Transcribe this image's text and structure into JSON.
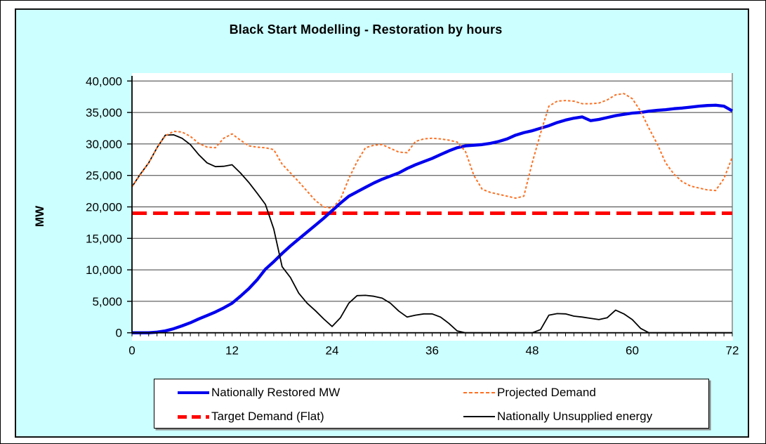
{
  "page": {
    "background": "#FFFFFF",
    "panel_background": "#CCFFFF",
    "border_color": "#000000",
    "plot_background": "#FFFFFF",
    "gridline_color": "#3D3D3D",
    "axis_color": "#000000"
  },
  "chart_data": {
    "type": "line",
    "title": "Black Start Modelling - Restoration by hours",
    "xlabel": "",
    "ylabel": "MW",
    "xlim": [
      0,
      72
    ],
    "ylim": [
      0,
      40000
    ],
    "x_ticks": [
      0,
      12,
      24,
      36,
      48,
      60,
      72
    ],
    "x_tick_labels": [
      "0",
      "12",
      "24",
      "36",
      "48",
      "60",
      "72"
    ],
    "x_minor_tick_step": 1,
    "y_ticks": [
      0,
      5000,
      10000,
      15000,
      20000,
      25000,
      30000,
      35000,
      40000
    ],
    "y_tick_labels": [
      "0",
      "5,000",
      "10,000",
      "15,000",
      "20,000",
      "25,000",
      "30,000",
      "35,000",
      "40,000"
    ],
    "grid": true,
    "legend_position": "bottom",
    "series": [
      {
        "name": "Nationally Restored MW",
        "color": "#0000EE",
        "width": 4.3,
        "dash": "solid",
        "points": [
          [
            0,
            0
          ],
          [
            2,
            0
          ],
          [
            3,
            100
          ],
          [
            4,
            300
          ],
          [
            5,
            650
          ],
          [
            6,
            1100
          ],
          [
            7,
            1600
          ],
          [
            8,
            2200
          ],
          [
            9,
            2750
          ],
          [
            10,
            3300
          ],
          [
            11,
            3950
          ],
          [
            12,
            4700
          ],
          [
            13,
            5800
          ],
          [
            14,
            7000
          ],
          [
            15,
            8400
          ],
          [
            16,
            10100
          ],
          [
            17,
            11300
          ],
          [
            18,
            12600
          ],
          [
            19,
            13800
          ],
          [
            20,
            14900
          ],
          [
            21,
            16000
          ],
          [
            22,
            17100
          ],
          [
            23,
            18200
          ],
          [
            24,
            19400
          ],
          [
            25,
            20600
          ],
          [
            26,
            21700
          ],
          [
            27,
            22400
          ],
          [
            28,
            23100
          ],
          [
            29,
            23800
          ],
          [
            30,
            24400
          ],
          [
            31,
            24900
          ],
          [
            32,
            25400
          ],
          [
            33,
            26100
          ],
          [
            34,
            26700
          ],
          [
            35,
            27200
          ],
          [
            36,
            27700
          ],
          [
            37,
            28300
          ],
          [
            38,
            28900
          ],
          [
            39,
            29400
          ],
          [
            40,
            29700
          ],
          [
            41,
            29800
          ],
          [
            42,
            29900
          ],
          [
            43,
            30100
          ],
          [
            44,
            30400
          ],
          [
            45,
            30800
          ],
          [
            46,
            31400
          ],
          [
            47,
            31800
          ],
          [
            48,
            32100
          ],
          [
            49,
            32500
          ],
          [
            50,
            32900
          ],
          [
            51,
            33400
          ],
          [
            52,
            33800
          ],
          [
            53,
            34100
          ],
          [
            54,
            34300
          ],
          [
            55,
            33700
          ],
          [
            56,
            33900
          ],
          [
            57,
            34200
          ],
          [
            58,
            34500
          ],
          [
            59,
            34700
          ],
          [
            60,
            34900
          ],
          [
            61,
            35000
          ],
          [
            62,
            35200
          ],
          [
            63,
            35350
          ],
          [
            64,
            35450
          ],
          [
            65,
            35600
          ],
          [
            66,
            35700
          ],
          [
            67,
            35850
          ],
          [
            68,
            36000
          ],
          [
            69,
            36100
          ],
          [
            70,
            36150
          ],
          [
            71,
            36000
          ],
          [
            72,
            35250
          ]
        ]
      },
      {
        "name": "Projected Demand",
        "color": "#FF6F20",
        "width": 2,
        "dash": "short-dash",
        "points": [
          [
            0,
            23200
          ],
          [
            1,
            25100
          ],
          [
            2,
            27000
          ],
          [
            3,
            29400
          ],
          [
            4,
            31300
          ],
          [
            5,
            32000
          ],
          [
            6,
            31900
          ],
          [
            7,
            31200
          ],
          [
            8,
            30100
          ],
          [
            9,
            29500
          ],
          [
            10,
            29400
          ],
          [
            11,
            30900
          ],
          [
            12,
            31600
          ],
          [
            13,
            30600
          ],
          [
            14,
            29700
          ],
          [
            15,
            29500
          ],
          [
            16,
            29400
          ],
          [
            17,
            29100
          ],
          [
            18,
            26800
          ],
          [
            19,
            25400
          ],
          [
            20,
            24000
          ],
          [
            21,
            22500
          ],
          [
            22,
            21000
          ],
          [
            23,
            20000
          ],
          [
            24,
            19800
          ],
          [
            25,
            21200
          ],
          [
            26,
            24500
          ],
          [
            27,
            27200
          ],
          [
            28,
            29400
          ],
          [
            29,
            29800
          ],
          [
            30,
            29900
          ],
          [
            31,
            29300
          ],
          [
            32,
            28700
          ],
          [
            33,
            28600
          ],
          [
            34,
            30400
          ],
          [
            35,
            30800
          ],
          [
            36,
            30900
          ],
          [
            37,
            30800
          ],
          [
            38,
            30600
          ],
          [
            39,
            30300
          ],
          [
            40,
            28800
          ],
          [
            41,
            25000
          ],
          [
            42,
            22800
          ],
          [
            43,
            22300
          ],
          [
            44,
            22000
          ],
          [
            45,
            21700
          ],
          [
            46,
            21400
          ],
          [
            47,
            21700
          ],
          [
            48,
            27000
          ],
          [
            49,
            31700
          ],
          [
            50,
            36000
          ],
          [
            51,
            36800
          ],
          [
            52,
            36900
          ],
          [
            53,
            36800
          ],
          [
            54,
            36400
          ],
          [
            55,
            36400
          ],
          [
            56,
            36500
          ],
          [
            57,
            37000
          ],
          [
            58,
            37800
          ],
          [
            59,
            38000
          ],
          [
            60,
            37200
          ],
          [
            61,
            35200
          ],
          [
            62,
            32500
          ],
          [
            63,
            30000
          ],
          [
            64,
            27000
          ],
          [
            65,
            25200
          ],
          [
            66,
            24000
          ],
          [
            67,
            23300
          ],
          [
            68,
            23000
          ],
          [
            69,
            22700
          ],
          [
            70,
            22600
          ],
          [
            71,
            24500
          ],
          [
            72,
            27900
          ]
        ]
      },
      {
        "name": "Target Demand (Flat)",
        "color": "#FF0000",
        "width": 5,
        "dash": "long-dash",
        "points": [
          [
            0,
            19000
          ],
          [
            72,
            19000
          ]
        ]
      },
      {
        "name": "Nationally Unsupplied energy",
        "color": "#000000",
        "width": 1.8,
        "dash": "solid",
        "points": [
          [
            0,
            23200
          ],
          [
            1,
            25200
          ],
          [
            2,
            27000
          ],
          [
            3,
            29400
          ],
          [
            4,
            31400
          ],
          [
            5,
            31450
          ],
          [
            6,
            30900
          ],
          [
            7,
            29900
          ],
          [
            8,
            28300
          ],
          [
            9,
            27000
          ],
          [
            10,
            26400
          ],
          [
            11,
            26450
          ],
          [
            12,
            26700
          ],
          [
            13,
            25400
          ],
          [
            14,
            23900
          ],
          [
            15,
            22200
          ],
          [
            16,
            20400
          ],
          [
            17,
            16500
          ],
          [
            18,
            10500
          ],
          [
            19,
            8800
          ],
          [
            20,
            6300
          ],
          [
            21,
            4700
          ],
          [
            22,
            3500
          ],
          [
            23,
            2200
          ],
          [
            24,
            1000
          ],
          [
            25,
            2400
          ],
          [
            26,
            4700
          ],
          [
            27,
            5900
          ],
          [
            28,
            5950
          ],
          [
            29,
            5800
          ],
          [
            30,
            5500
          ],
          [
            31,
            4700
          ],
          [
            32,
            3450
          ],
          [
            33,
            2500
          ],
          [
            34,
            2800
          ],
          [
            35,
            3000
          ],
          [
            36,
            3000
          ],
          [
            37,
            2500
          ],
          [
            38,
            1500
          ],
          [
            39,
            300
          ],
          [
            40,
            0
          ],
          [
            48,
            0
          ],
          [
            49,
            500
          ],
          [
            50,
            2800
          ],
          [
            51,
            3050
          ],
          [
            52,
            3000
          ],
          [
            53,
            2650
          ],
          [
            54,
            2500
          ],
          [
            55,
            2300
          ],
          [
            56,
            2100
          ],
          [
            57,
            2400
          ],
          [
            58,
            3600
          ],
          [
            59,
            3000
          ],
          [
            60,
            2100
          ],
          [
            61,
            700
          ],
          [
            62,
            0
          ],
          [
            72,
            0
          ]
        ]
      }
    ]
  },
  "legend": {
    "entries": [
      {
        "label": "Nationally Restored MW"
      },
      {
        "label": "Projected Demand"
      },
      {
        "label": "Target Demand (Flat)"
      },
      {
        "label": "Nationally Unsupplied energy"
      }
    ]
  }
}
